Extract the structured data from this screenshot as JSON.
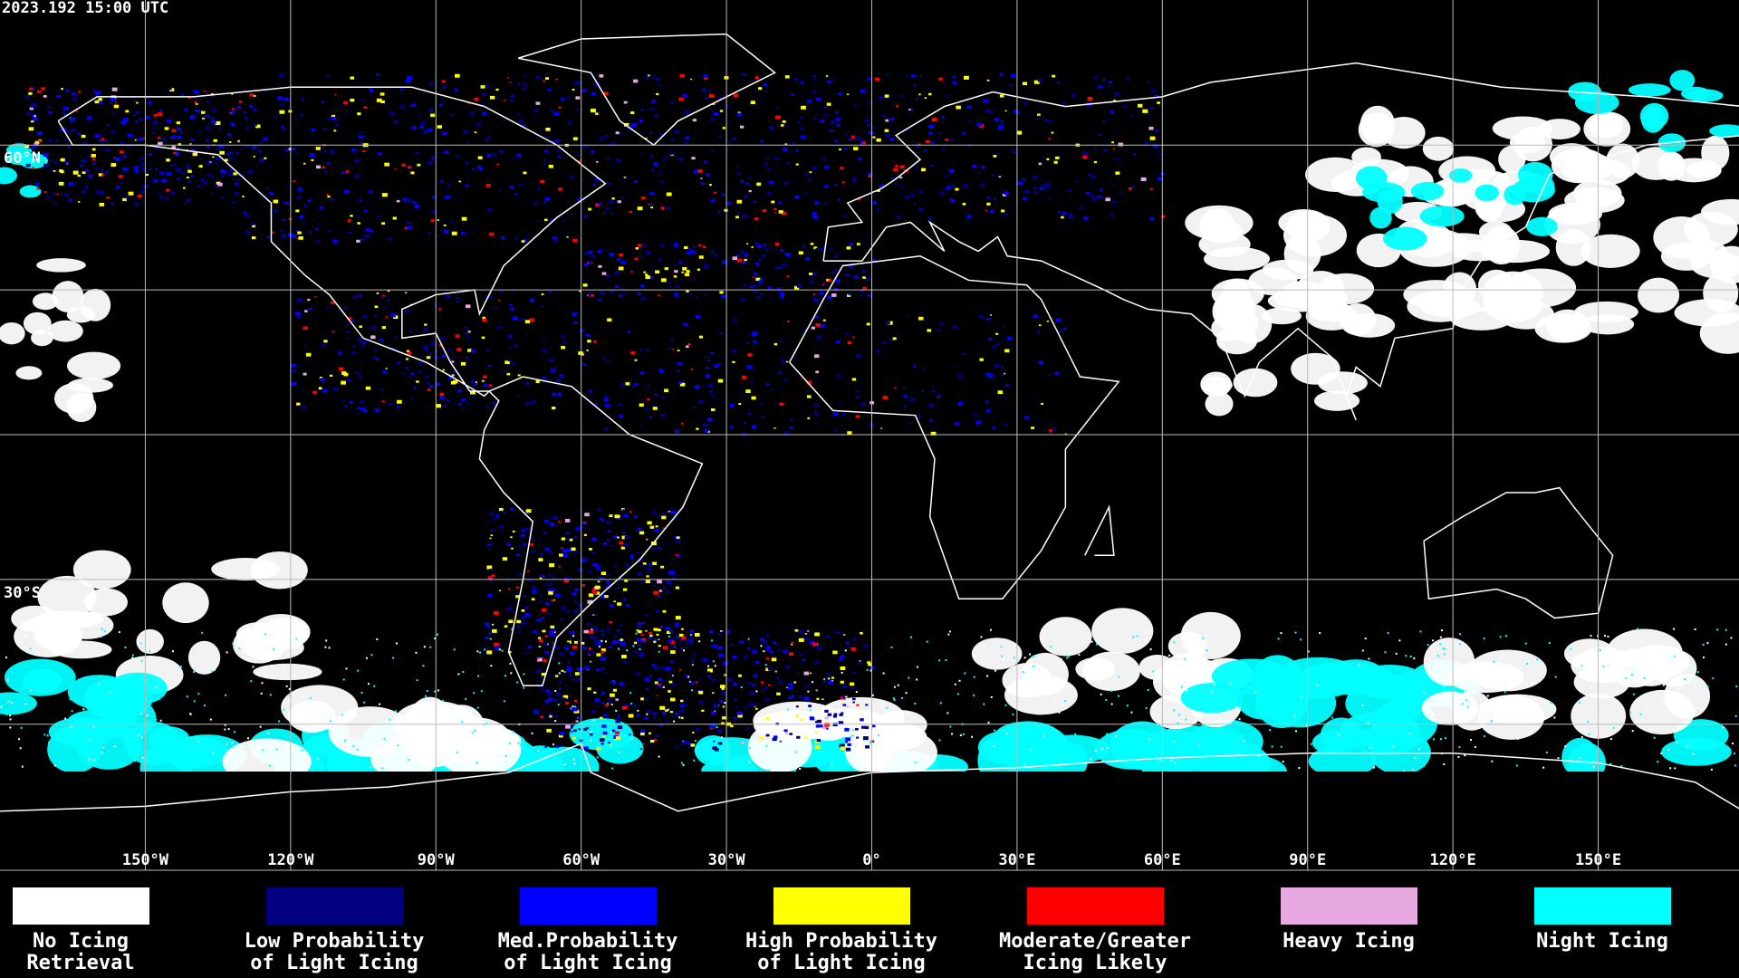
{
  "header": {
    "timestamp": "2023.192 15:00 UTC"
  },
  "map": {
    "lat_labels": [
      "60°N",
      "30°S"
    ],
    "lon_labels": [
      "150°W",
      "120°W",
      "90°W",
      "60°W",
      "30°W",
      "0°",
      "30°E",
      "60°E",
      "90°E",
      "120°E",
      "150°E"
    ]
  },
  "legend": {
    "items": [
      {
        "lines": [
          "No Icing",
          "Retrieval"
        ],
        "color": "#ffffff"
      },
      {
        "lines": [
          "Low Probability",
          "of Light Icing"
        ],
        "color": "#000080"
      },
      {
        "lines": [
          "Med.Probability",
          "of Light Icing"
        ],
        "color": "#0000ff"
      },
      {
        "lines": [
          "High Probability",
          "of Light Icing"
        ],
        "color": "#ffff00"
      },
      {
        "lines": [
          "Moderate/Greater",
          "Icing Likely"
        ],
        "color": "#ff0000"
      },
      {
        "lines": [
          "Heavy Icing"
        ],
        "color": "#e8a8e0"
      },
      {
        "lines": [
          "Night Icing"
        ],
        "color": "#00ffff"
      }
    ]
  }
}
